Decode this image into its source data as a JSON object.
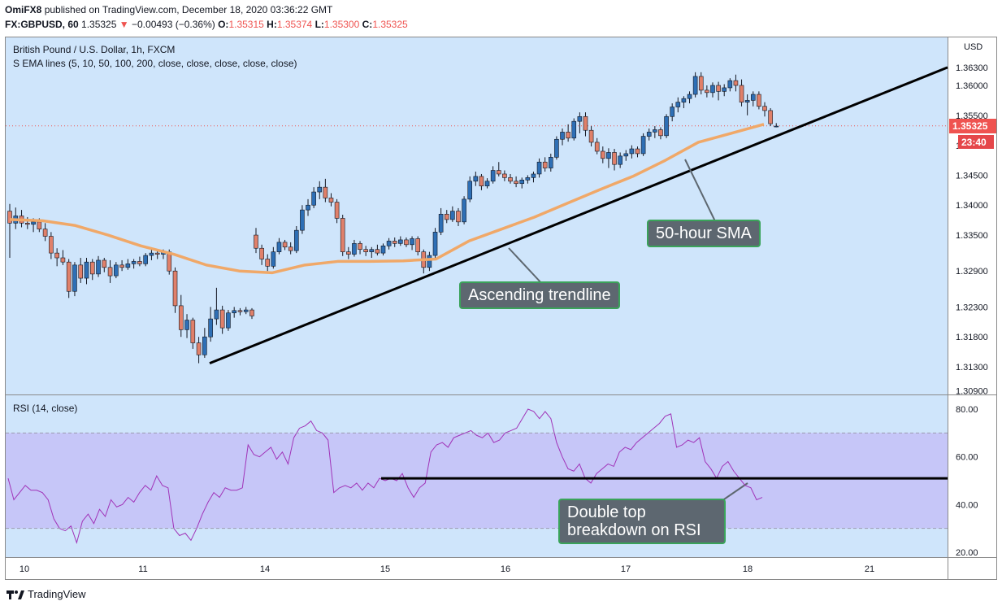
{
  "header": {
    "user": "OmiFX8",
    "published": "published on TradingView.com, December 18, 2020 03:36:22 GMT",
    "symbol": "FX:GBPUSD, 60",
    "last": "1.35325",
    "change_arrow": "▼",
    "change": "−0.00493 (−0.36%)",
    "o_label": "O:",
    "o": "1.35315",
    "h_label": "H:",
    "h": "1.35374",
    "l_label": "L:",
    "l": "1.35300",
    "c_label": "C:",
    "c": "1.35325"
  },
  "legend": {
    "title": "British Pound / U.S. Dollar, 1h, FXCM",
    "ema": "S EMA lines (5, 10, 50, 100, 200, close, close, close, close, close)",
    "rsi": "RSI (14, close)"
  },
  "price_axis": {
    "currency": "USD",
    "labels": [
      "1.36300",
      "1.36000",
      "1.35500",
      "1.34500",
      "1.34000",
      "1.33500",
      "1.32900",
      "1.32300",
      "1.31800",
      "1.31300",
      "1.30900"
    ],
    "current_price": "1.35325",
    "countdown": "23:40",
    "partial_label": "1"
  },
  "rsi_axis": {
    "labels": [
      "80.00",
      "60.00",
      "40.00",
      "20.00"
    ]
  },
  "time_axis": {
    "labels": [
      "10",
      "11",
      "14",
      "15",
      "16",
      "17",
      "18",
      "21"
    ]
  },
  "annotations": {
    "sma": "50-hour SMA",
    "trendline": "Ascending trendline",
    "rsi_line1": "Double top",
    "rsi_line2": "breakdown on RSI"
  },
  "footer": {
    "brand": "TradingView"
  },
  "colors": {
    "background": "#cfe5fb",
    "rsi_band": "#c6c6f8",
    "bull": "#2e6fb5",
    "bear": "#e0806a",
    "sma": "#f0a868",
    "rsi_line": "#a033b8",
    "annotation_fill": "#5d6770",
    "annotation_border": "#3aa35a",
    "price_tag": "#ef5350"
  },
  "chart_data": [
    {
      "type": "candlestick",
      "title": "British Pound / U.S. Dollar, 1h, FXCM",
      "x_ticks": [
        "10",
        "11",
        "14",
        "15",
        "16",
        "17",
        "18",
        "21"
      ],
      "ylim": [
        1.309,
        1.365
      ],
      "y_scale": "linear",
      "grid": false,
      "candles": [
        {
          "o": 1.339,
          "h": 1.3402,
          "l": 1.3312,
          "c": 1.337
        },
        {
          "o": 1.337,
          "h": 1.3396,
          "l": 1.336,
          "c": 1.3382
        },
        {
          "o": 1.3382,
          "h": 1.3392,
          "l": 1.3363,
          "c": 1.337
        },
        {
          "o": 1.337,
          "h": 1.338,
          "l": 1.336,
          "c": 1.3368
        },
        {
          "o": 1.3368,
          "h": 1.3378,
          "l": 1.3355,
          "c": 1.3372
        },
        {
          "o": 1.3372,
          "h": 1.3378,
          "l": 1.3355,
          "c": 1.336
        },
        {
          "o": 1.336,
          "h": 1.337,
          "l": 1.334,
          "c": 1.3348
        },
        {
          "o": 1.3348,
          "h": 1.3355,
          "l": 1.331,
          "c": 1.332
        },
        {
          "o": 1.332,
          "h": 1.3328,
          "l": 1.3298,
          "c": 1.3312
        },
        {
          "o": 1.3312,
          "h": 1.3325,
          "l": 1.33,
          "c": 1.3305
        },
        {
          "o": 1.3305,
          "h": 1.331,
          "l": 1.3245,
          "c": 1.3256
        },
        {
          "o": 1.3256,
          "h": 1.3305,
          "l": 1.3248,
          "c": 1.33
        },
        {
          "o": 1.33,
          "h": 1.3312,
          "l": 1.327,
          "c": 1.3278
        },
        {
          "o": 1.3278,
          "h": 1.3312,
          "l": 1.3268,
          "c": 1.3305
        },
        {
          "o": 1.3305,
          "h": 1.331,
          "l": 1.3275,
          "c": 1.3285
        },
        {
          "o": 1.3285,
          "h": 1.3315,
          "l": 1.328,
          "c": 1.3308
        },
        {
          "o": 1.3308,
          "h": 1.3312,
          "l": 1.3288,
          "c": 1.3296
        },
        {
          "o": 1.3296,
          "h": 1.3308,
          "l": 1.327,
          "c": 1.3282
        },
        {
          "o": 1.3282,
          "h": 1.3305,
          "l": 1.3278,
          "c": 1.33
        },
        {
          "o": 1.33,
          "h": 1.3308,
          "l": 1.329,
          "c": 1.3296
        },
        {
          "o": 1.3296,
          "h": 1.331,
          "l": 1.3292,
          "c": 1.3302
        },
        {
          "o": 1.3302,
          "h": 1.331,
          "l": 1.3294,
          "c": 1.3306
        },
        {
          "o": 1.3306,
          "h": 1.3314,
          "l": 1.3298,
          "c": 1.3302
        },
        {
          "o": 1.3302,
          "h": 1.332,
          "l": 1.3298,
          "c": 1.3316
        },
        {
          "o": 1.3316,
          "h": 1.3326,
          "l": 1.3308,
          "c": 1.332
        },
        {
          "o": 1.332,
          "h": 1.3324,
          "l": 1.331,
          "c": 1.3318
        },
        {
          "o": 1.3318,
          "h": 1.3326,
          "l": 1.331,
          "c": 1.3322
        },
        {
          "o": 1.3322,
          "h": 1.3326,
          "l": 1.3284,
          "c": 1.329
        },
        {
          "o": 1.329,
          "h": 1.3296,
          "l": 1.322,
          "c": 1.3232
        },
        {
          "o": 1.3232,
          "h": 1.325,
          "l": 1.318,
          "c": 1.3192
        },
        {
          "o": 1.3192,
          "h": 1.3218,
          "l": 1.3178,
          "c": 1.3208
        },
        {
          "o": 1.3208,
          "h": 1.3212,
          "l": 1.316,
          "c": 1.317
        },
        {
          "o": 1.317,
          "h": 1.318,
          "l": 1.3136,
          "c": 1.315
        },
        {
          "o": 1.315,
          "h": 1.3195,
          "l": 1.3145,
          "c": 1.318
        },
        {
          "o": 1.318,
          "h": 1.323,
          "l": 1.3172,
          "c": 1.321
        },
        {
          "o": 1.321,
          "h": 1.3262,
          "l": 1.32,
          "c": 1.3225
        },
        {
          "o": 1.3225,
          "h": 1.3232,
          "l": 1.3185,
          "c": 1.3195
        },
        {
          "o": 1.3195,
          "h": 1.3225,
          "l": 1.319,
          "c": 1.322
        },
        {
          "o": 1.322,
          "h": 1.323,
          "l": 1.3212,
          "c": 1.3224
        },
        {
          "o": 1.3224,
          "h": 1.3228,
          "l": 1.3216,
          "c": 1.3222
        },
        {
          "o": 1.3222,
          "h": 1.323,
          "l": 1.3218,
          "c": 1.3225
        },
        {
          "o": 1.3225,
          "h": 1.3228,
          "l": 1.321,
          "c": 1.3215
        },
        {
          "o": 1.335,
          "h": 1.3362,
          "l": 1.332,
          "c": 1.3328
        },
        {
          "o": 1.3328,
          "h": 1.3334,
          "l": 1.33,
          "c": 1.331
        },
        {
          "o": 1.331,
          "h": 1.3318,
          "l": 1.329,
          "c": 1.3298
        },
        {
          "o": 1.3298,
          "h": 1.333,
          "l": 1.3294,
          "c": 1.3322
        },
        {
          "o": 1.3322,
          "h": 1.3345,
          "l": 1.3318,
          "c": 1.3338
        },
        {
          "o": 1.3338,
          "h": 1.3342,
          "l": 1.3325,
          "c": 1.333
        },
        {
          "o": 1.333,
          "h": 1.3338,
          "l": 1.3318,
          "c": 1.3324
        },
        {
          "o": 1.3324,
          "h": 1.3365,
          "l": 1.332,
          "c": 1.3358
        },
        {
          "o": 1.3358,
          "h": 1.34,
          "l": 1.3352,
          "c": 1.3392
        },
        {
          "o": 1.3392,
          "h": 1.341,
          "l": 1.3382,
          "c": 1.34
        },
        {
          "o": 1.34,
          "h": 1.343,
          "l": 1.3395,
          "c": 1.3422
        },
        {
          "o": 1.3422,
          "h": 1.344,
          "l": 1.341,
          "c": 1.343
        },
        {
          "o": 1.343,
          "h": 1.3444,
          "l": 1.3405,
          "c": 1.3412
        },
        {
          "o": 1.3412,
          "h": 1.342,
          "l": 1.3398,
          "c": 1.3405
        },
        {
          "o": 1.3405,
          "h": 1.341,
          "l": 1.337,
          "c": 1.3378
        },
        {
          "o": 1.3378,
          "h": 1.3384,
          "l": 1.3315,
          "c": 1.3322
        },
        {
          "o": 1.3322,
          "h": 1.333,
          "l": 1.331,
          "c": 1.3318
        },
        {
          "o": 1.3318,
          "h": 1.3342,
          "l": 1.3314,
          "c": 1.3336
        },
        {
          "o": 1.3336,
          "h": 1.334,
          "l": 1.3318,
          "c": 1.3326
        },
        {
          "o": 1.3326,
          "h": 1.3332,
          "l": 1.3315,
          "c": 1.3322
        },
        {
          "o": 1.3322,
          "h": 1.333,
          "l": 1.3312,
          "c": 1.3326
        },
        {
          "o": 1.3326,
          "h": 1.3334,
          "l": 1.3316,
          "c": 1.332
        },
        {
          "o": 1.332,
          "h": 1.3336,
          "l": 1.3316,
          "c": 1.3332
        },
        {
          "o": 1.3332,
          "h": 1.3345,
          "l": 1.3326,
          "c": 1.334
        },
        {
          "o": 1.334,
          "h": 1.3346,
          "l": 1.333,
          "c": 1.3336
        },
        {
          "o": 1.3336,
          "h": 1.3348,
          "l": 1.3332,
          "c": 1.3342
        },
        {
          "o": 1.3342,
          "h": 1.3346,
          "l": 1.333,
          "c": 1.3334
        },
        {
          "o": 1.3334,
          "h": 1.3348,
          "l": 1.3325,
          "c": 1.3344
        },
        {
          "o": 1.3344,
          "h": 1.3348,
          "l": 1.3316,
          "c": 1.3322
        },
        {
          "o": 1.3322,
          "h": 1.3326,
          "l": 1.3286,
          "c": 1.3296
        },
        {
          "o": 1.3296,
          "h": 1.3322,
          "l": 1.329,
          "c": 1.3316
        },
        {
          "o": 1.3316,
          "h": 1.3362,
          "l": 1.331,
          "c": 1.3355
        },
        {
          "o": 1.3355,
          "h": 1.3395,
          "l": 1.335,
          "c": 1.3385
        },
        {
          "o": 1.3385,
          "h": 1.3392,
          "l": 1.337,
          "c": 1.3376
        },
        {
          "o": 1.3376,
          "h": 1.3398,
          "l": 1.3372,
          "c": 1.339
        },
        {
          "o": 1.339,
          "h": 1.3395,
          "l": 1.3365,
          "c": 1.3372
        },
        {
          "o": 1.3372,
          "h": 1.3415,
          "l": 1.3368,
          "c": 1.341
        },
        {
          "o": 1.341,
          "h": 1.3448,
          "l": 1.3405,
          "c": 1.344
        },
        {
          "o": 1.344,
          "h": 1.3456,
          "l": 1.3432,
          "c": 1.3448
        },
        {
          "o": 1.3448,
          "h": 1.3452,
          "l": 1.3425,
          "c": 1.3432
        },
        {
          "o": 1.3432,
          "h": 1.3445,
          "l": 1.3428,
          "c": 1.344
        },
        {
          "o": 1.344,
          "h": 1.3465,
          "l": 1.3436,
          "c": 1.3458
        },
        {
          "o": 1.3458,
          "h": 1.3472,
          "l": 1.3448,
          "c": 1.3452
        },
        {
          "o": 1.3452,
          "h": 1.3458,
          "l": 1.344,
          "c": 1.3446
        },
        {
          "o": 1.3446,
          "h": 1.3452,
          "l": 1.3436,
          "c": 1.344
        },
        {
          "o": 1.344,
          "h": 1.3448,
          "l": 1.343,
          "c": 1.3436
        },
        {
          "o": 1.3436,
          "h": 1.3446,
          "l": 1.3428,
          "c": 1.3442
        },
        {
          "o": 1.3442,
          "h": 1.345,
          "l": 1.3436,
          "c": 1.3446
        },
        {
          "o": 1.3446,
          "h": 1.3456,
          "l": 1.3438,
          "c": 1.3452
        },
        {
          "o": 1.3452,
          "h": 1.3478,
          "l": 1.3446,
          "c": 1.3472
        },
        {
          "o": 1.3472,
          "h": 1.348,
          "l": 1.3456,
          "c": 1.3462
        },
        {
          "o": 1.3462,
          "h": 1.3486,
          "l": 1.3456,
          "c": 1.348
        },
        {
          "o": 1.348,
          "h": 1.3515,
          "l": 1.3476,
          "c": 1.351
        },
        {
          "o": 1.351,
          "h": 1.3528,
          "l": 1.35,
          "c": 1.3522
        },
        {
          "o": 1.3522,
          "h": 1.3535,
          "l": 1.3506,
          "c": 1.3512
        },
        {
          "o": 1.3512,
          "h": 1.3545,
          "l": 1.3508,
          "c": 1.354
        },
        {
          "o": 1.354,
          "h": 1.3555,
          "l": 1.352,
          "c": 1.3548
        },
        {
          "o": 1.3548,
          "h": 1.3555,
          "l": 1.3515,
          "c": 1.3525
        },
        {
          "o": 1.3525,
          "h": 1.3532,
          "l": 1.3498,
          "c": 1.3505
        },
        {
          "o": 1.3505,
          "h": 1.3512,
          "l": 1.3485,
          "c": 1.349
        },
        {
          "o": 1.349,
          "h": 1.3498,
          "l": 1.347,
          "c": 1.3478
        },
        {
          "o": 1.3478,
          "h": 1.3495,
          "l": 1.3462,
          "c": 1.3488
        },
        {
          "o": 1.3488,
          "h": 1.3494,
          "l": 1.3458,
          "c": 1.3468
        },
        {
          "o": 1.3468,
          "h": 1.3488,
          "l": 1.3462,
          "c": 1.3482
        },
        {
          "o": 1.3482,
          "h": 1.3492,
          "l": 1.3474,
          "c": 1.3486
        },
        {
          "o": 1.3486,
          "h": 1.35,
          "l": 1.3478,
          "c": 1.3494
        },
        {
          "o": 1.3494,
          "h": 1.3498,
          "l": 1.348,
          "c": 1.3486
        },
        {
          "o": 1.3486,
          "h": 1.352,
          "l": 1.3482,
          "c": 1.3515
        },
        {
          "o": 1.3515,
          "h": 1.3528,
          "l": 1.3508,
          "c": 1.3522
        },
        {
          "o": 1.3522,
          "h": 1.3532,
          "l": 1.3512,
          "c": 1.3526
        },
        {
          "o": 1.3526,
          "h": 1.353,
          "l": 1.351,
          "c": 1.3516
        },
        {
          "o": 1.3516,
          "h": 1.3552,
          "l": 1.3512,
          "c": 1.3548
        },
        {
          "o": 1.3548,
          "h": 1.357,
          "l": 1.354,
          "c": 1.3564
        },
        {
          "o": 1.3564,
          "h": 1.358,
          "l": 1.3555,
          "c": 1.3572
        },
        {
          "o": 1.3572,
          "h": 1.3582,
          "l": 1.3562,
          "c": 1.3578
        },
        {
          "o": 1.3578,
          "h": 1.359,
          "l": 1.357,
          "c": 1.3585
        },
        {
          "o": 1.3585,
          "h": 1.3622,
          "l": 1.358,
          "c": 1.3615
        },
        {
          "o": 1.3615,
          "h": 1.3622,
          "l": 1.3585,
          "c": 1.3592
        },
        {
          "o": 1.3592,
          "h": 1.36,
          "l": 1.358,
          "c": 1.3588
        },
        {
          "o": 1.3588,
          "h": 1.3605,
          "l": 1.358,
          "c": 1.36
        },
        {
          "o": 1.36,
          "h": 1.3606,
          "l": 1.3575,
          "c": 1.359
        },
        {
          "o": 1.359,
          "h": 1.3602,
          "l": 1.3582,
          "c": 1.3596
        },
        {
          "o": 1.3596,
          "h": 1.3612,
          "l": 1.359,
          "c": 1.3608
        },
        {
          "o": 1.3608,
          "h": 1.3618,
          "l": 1.359,
          "c": 1.36
        },
        {
          "o": 1.36,
          "h": 1.361,
          "l": 1.3565,
          "c": 1.3572
        },
        {
          "o": 1.3572,
          "h": 1.3585,
          "l": 1.355,
          "c": 1.3575
        },
        {
          "o": 1.3575,
          "h": 1.359,
          "l": 1.3565,
          "c": 1.3585
        },
        {
          "o": 1.3585,
          "h": 1.359,
          "l": 1.356,
          "c": 1.3565
        },
        {
          "o": 1.3565,
          "h": 1.3572,
          "l": 1.3548,
          "c": 1.3558
        },
        {
          "o": 1.3558,
          "h": 1.3562,
          "l": 1.3532,
          "c": 1.3536
        },
        {
          "o": 1.3531,
          "h": 1.3537,
          "l": 1.353,
          "c": 1.3532
        }
      ],
      "candle_segments": [
        [
          0,
          41
        ],
        [
          42,
          130
        ]
      ],
      "sma_50": [
        1.3376,
        1.3374,
        1.3366,
        1.335,
        1.3332,
        1.3318,
        1.33,
        1.329,
        1.3287,
        1.33,
        1.3306,
        1.3306,
        1.3307,
        1.331,
        1.334,
        1.336,
        1.338,
        1.3403,
        1.3426,
        1.3448,
        1.3475,
        1.3505,
        1.352,
        1.3535
      ],
      "trendline": [
        {
          "x": "Dec 11",
          "y": 1.3136
        },
        {
          "x": "Dec 21",
          "y": 1.363
        }
      ],
      "ema_lines": [
        "5",
        "10",
        "50",
        "100",
        "200"
      ]
    },
    {
      "type": "line",
      "title": "RSI (14, close)",
      "ylim": [
        18,
        83
      ],
      "band": [
        30,
        70
      ],
      "levels": [
        80,
        60,
        40,
        20
      ],
      "horizontal_line": 51,
      "values": [
        51,
        42,
        45,
        48,
        46,
        46,
        45,
        42,
        34,
        30,
        29,
        31,
        24,
        33,
        36,
        32,
        38,
        35,
        42,
        39,
        40,
        43,
        41,
        45,
        48,
        46,
        52,
        48,
        47,
        30,
        27,
        28,
        25,
        30,
        36,
        41,
        45,
        43,
        47,
        46,
        46,
        47,
        65,
        61,
        60,
        62,
        64,
        59,
        62,
        57,
        68,
        72,
        73,
        75,
        71,
        70,
        67,
        45,
        47,
        48,
        47,
        49,
        46,
        49,
        47,
        51,
        50,
        51,
        50,
        53,
        47,
        43,
        47,
        49,
        62,
        65,
        66,
        64,
        68,
        69,
        70,
        71,
        69,
        68,
        70,
        66,
        67,
        70,
        71,
        72,
        76,
        80,
        79,
        76,
        79,
        76,
        66,
        60,
        55,
        54,
        57,
        51,
        49,
        53,
        55,
        57,
        56,
        62,
        64,
        63,
        66,
        68,
        70,
        72,
        74,
        77,
        78,
        64,
        65,
        67,
        66,
        68,
        58,
        55,
        51,
        56,
        58,
        54,
        51,
        48,
        47,
        42,
        43
      ]
    }
  ]
}
